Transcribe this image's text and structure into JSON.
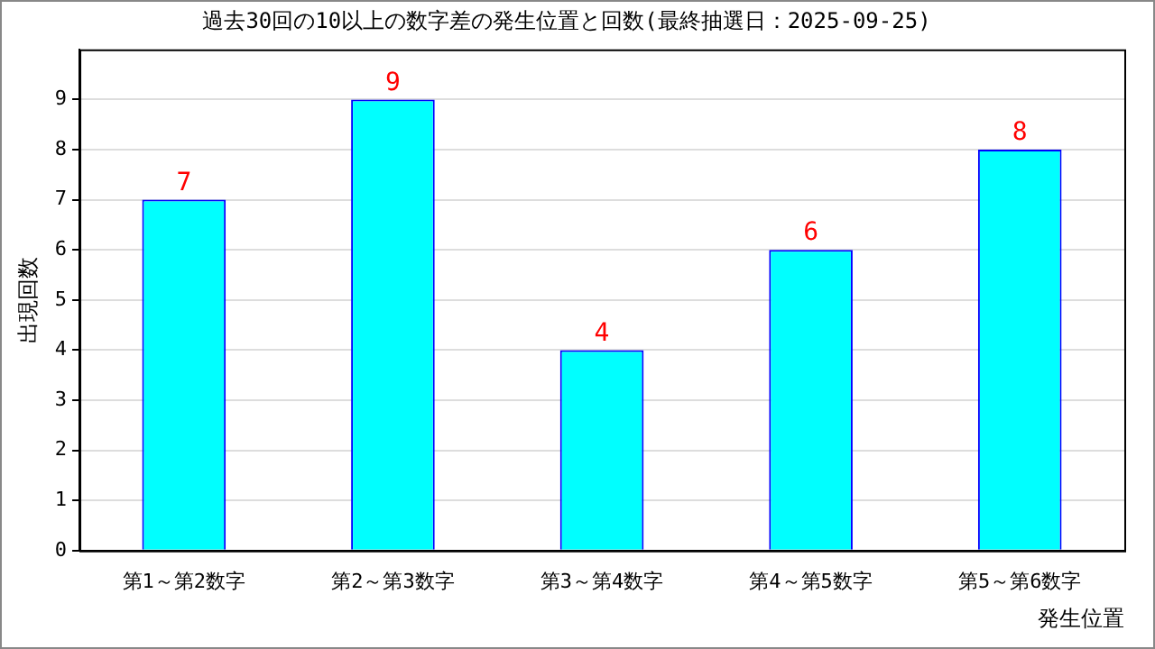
{
  "chart_data": {
    "type": "bar",
    "title": "過去30回の10以上の数字差の発生位置と回数(最終抽選日：2025-09-25)",
    "xlabel": "発生位置",
    "ylabel": "出現回数",
    "categories": [
      "第1～第2数字",
      "第2～第3数字",
      "第3～第4数字",
      "第4～第5数字",
      "第5～第6数字"
    ],
    "series": [
      {
        "color": "#00ffff",
        "values": [
          7,
          9,
          4,
          6,
          8
        ]
      }
    ],
    "ylim": [
      0,
      10
    ],
    "yticks": [
      0,
      1,
      2,
      3,
      4,
      5,
      6,
      7,
      8,
      9
    ],
    "grid": "y",
    "data_labels": true,
    "legend": false
  }
}
